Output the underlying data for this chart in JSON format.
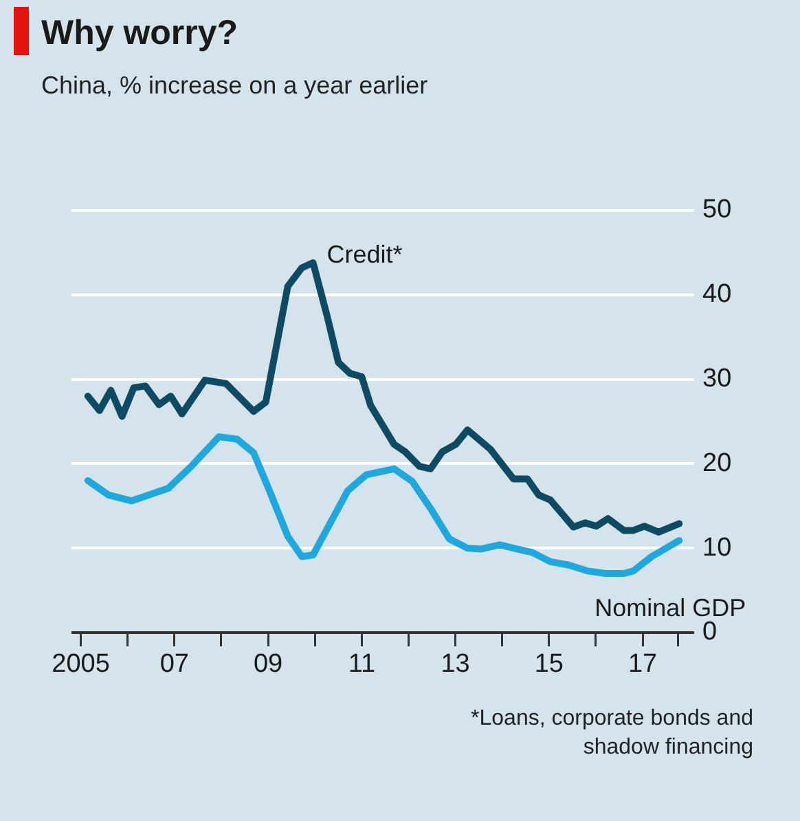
{
  "chart_data": {
    "type": "line",
    "title": "Why worry?",
    "subtitle": "China, % increase on a year earlier",
    "annotations": [
      "Credit*",
      "Nominal GDP",
      "*Loans, corporate bonds and shadow financing"
    ],
    "series": [
      {
        "color": "#0f4a63",
        "x": [
          2005.15,
          2005.4,
          2005.64,
          2005.88,
          2006.13,
          2006.38,
          2006.67,
          2006.92,
          2007.16,
          2007.65,
          2008.1,
          2008.69,
          2008.95,
          2009.42,
          2009.72,
          2009.96,
          2010.26,
          2010.5,
          2010.75,
          2011.0,
          2011.19,
          2011.69,
          2011.93,
          2012.23,
          2012.47,
          2012.72,
          2013.01,
          2013.26,
          2013.75,
          2014.24,
          2014.54,
          2014.78,
          2015.03,
          2015.52,
          2015.77,
          2016.01,
          2016.26,
          2016.6,
          2016.8,
          2017.04,
          2017.34,
          2017.78
        ],
        "values": [
          28.0,
          26.3,
          28.7,
          25.6,
          29.0,
          29.2,
          27.0,
          28.0,
          25.9,
          29.9,
          29.5,
          26.2,
          27.3,
          41.0,
          43.2,
          43.8,
          37.5,
          32.0,
          30.7,
          30.3,
          26.9,
          22.3,
          21.4,
          19.7,
          19.4,
          21.4,
          22.3,
          24.0,
          21.7,
          18.2,
          18.2,
          16.3,
          15.7,
          12.5,
          13.0,
          12.6,
          13.5,
          12.1,
          12.1,
          12.6,
          11.9,
          12.9
        ]
      },
      {
        "color": "#1fa8dd",
        "x": [
          2005.15,
          2005.59,
          2006.08,
          2006.87,
          2007.36,
          2007.95,
          2008.34,
          2008.69,
          2009.03,
          2009.42,
          2009.72,
          2009.96,
          2010.31,
          2010.7,
          2011.1,
          2011.69,
          2012.08,
          2012.47,
          2012.87,
          2013.26,
          2013.55,
          2013.95,
          2014.24,
          2014.64,
          2015.03,
          2015.42,
          2015.82,
          2016.21,
          2016.6,
          2016.8,
          2017.19,
          2017.78
        ],
        "values": [
          18.0,
          16.3,
          15.6,
          17.1,
          19.7,
          23.2,
          22.9,
          21.3,
          16.8,
          11.4,
          9.0,
          9.2,
          12.8,
          16.8,
          18.7,
          19.4,
          17.9,
          14.7,
          11.1,
          10.0,
          9.9,
          10.4,
          10.0,
          9.5,
          8.4,
          8.0,
          7.3,
          7.0,
          7.0,
          7.3,
          9.0,
          10.9
        ]
      }
    ],
    "xlim": [
      2004.8,
      2018.1
    ],
    "xticks": [
      2005,
      {
        "value": 2006,
        "label": null
      },
      {
        "value": 2007,
        "label": "07"
      },
      {
        "value": 2008,
        "label": null
      },
      {
        "value": 2009,
        "label": "09"
      },
      {
        "value": 2010,
        "label": null
      },
      {
        "value": 2011,
        "label": "11"
      },
      {
        "value": 2012,
        "label": null
      },
      {
        "value": 2013,
        "label": "13"
      },
      {
        "value": 2014,
        "label": null
      },
      {
        "value": 2015,
        "label": "15"
      },
      {
        "value": 2016,
        "label": null
      },
      {
        "value": 2017,
        "label": "17"
      },
      {
        "value": 2017.75,
        "label": null
      }
    ],
    "ylim": [
      0,
      50
    ],
    "yticks": [
      0,
      10,
      20,
      30,
      40,
      50
    ],
    "grid": "y",
    "legend": false,
    "marker": "none",
    "line_style": "solid"
  }
}
